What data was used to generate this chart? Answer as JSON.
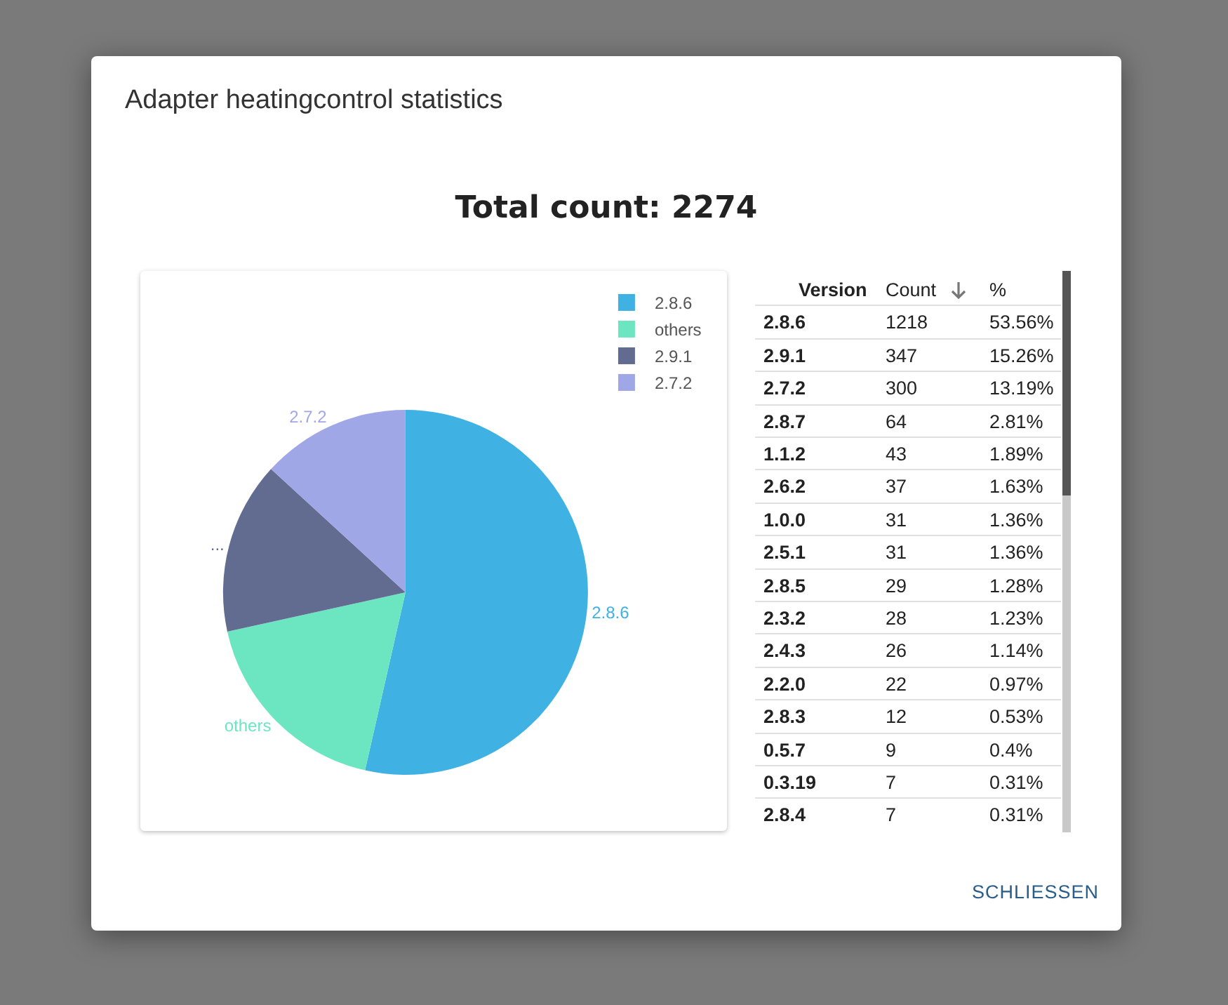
{
  "chart_data": [
    {
      "type": "pie",
      "title": "Adapter heatingcontrol statistics",
      "subtitle": "Total count: 2274",
      "categories": [
        "2.8.6",
        "others",
        "2.9.1",
        "2.7.2"
      ],
      "values": [
        53.56,
        17.99,
        15.26,
        13.19
      ],
      "colors": [
        "#3fb1e3",
        "#6be6c1",
        "#626c91",
        "#a0a7e6"
      ],
      "value_labels": [
        "2.8.6",
        "others",
        "...",
        "2.7.2"
      ],
      "legend": "top right",
      "annotations": [
        "SCHLIESSEN"
      ]
    },
    {
      "type": "other",
      "annotations": [
        "Version",
        "Count",
        "%",
        "2.8.6",
        "1218",
        "53.56%",
        "2.9.1",
        "347",
        "15.26%",
        "2.7.2",
        "300",
        "13.19%",
        "2.8.7",
        "64",
        "2.81%",
        "1.1.2",
        "43",
        "1.89%",
        "2.6.2",
        "37",
        "1.63%",
        "1.0.0",
        "31",
        "1.36%",
        "2.5.1",
        "31",
        "1.36%",
        "2.8.5",
        "29",
        "1.28%",
        "2.3.2",
        "28",
        "1.23%",
        "2.4.3",
        "26",
        "1.14%",
        "2.2.0",
        "22",
        "0.97%",
        "2.8.3",
        "12",
        "0.53%",
        "0.5.7",
        "9",
        "0.4%",
        "0.3.19",
        "7",
        "0.31%",
        "2.8.4",
        "7",
        "0.31%"
      ]
    }
  ]
}
